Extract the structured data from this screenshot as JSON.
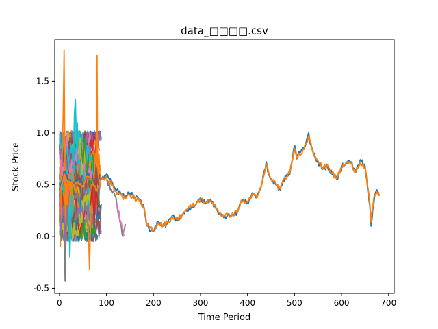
{
  "chart_data": {
    "type": "line",
    "title": "data_□□□□.csv",
    "xlabel": "Time Period",
    "ylabel": "Stock Price",
    "xlim": [
      -10,
      712
    ],
    "ylim": [
      -0.55,
      1.9
    ],
    "xticks": [
      0,
      100,
      200,
      300,
      400,
      500,
      600,
      700
    ],
    "yticks": [
      -0.5,
      0.0,
      0.5,
      1.0,
      1.5
    ],
    "grid": false,
    "legend": "none",
    "colors": [
      "#1f77b4",
      "#ff7f0e",
      "#2ca02c",
      "#d62728",
      "#9467bd",
      "#8c564b",
      "#e377c2",
      "#7f7f7f",
      "#bcbd22",
      "#17becf"
    ],
    "long_series": [
      {
        "color": "#1f77b4",
        "x": [
          0,
          10,
          20,
          30,
          40,
          50,
          60,
          70,
          80,
          90,
          100,
          110,
          120,
          130,
          140,
          150,
          160,
          170,
          180,
          185,
          190,
          200,
          210,
          220,
          230,
          240,
          250,
          260,
          270,
          280,
          290,
          300,
          310,
          320,
          330,
          340,
          350,
          360,
          370,
          380,
          385,
          390,
          400,
          410,
          420,
          430,
          440,
          445,
          450,
          460,
          470,
          480,
          490,
          500,
          505,
          510,
          520,
          530,
          535,
          540,
          550,
          560,
          570,
          580,
          590,
          600,
          610,
          620,
          630,
          640,
          650,
          660,
          663,
          670,
          675,
          680
        ],
        "y": [
          0.45,
          0.62,
          0.55,
          0.52,
          0.55,
          0.5,
          0.6,
          0.55,
          0.45,
          0.56,
          0.6,
          0.52,
          0.45,
          0.42,
          0.38,
          0.42,
          0.38,
          0.35,
          0.28,
          0.12,
          0.08,
          0.05,
          0.14,
          0.1,
          0.12,
          0.2,
          0.15,
          0.2,
          0.25,
          0.28,
          0.3,
          0.37,
          0.32,
          0.35,
          0.3,
          0.22,
          0.18,
          0.22,
          0.2,
          0.25,
          0.33,
          0.35,
          0.32,
          0.42,
          0.38,
          0.5,
          0.72,
          0.6,
          0.55,
          0.5,
          0.45,
          0.58,
          0.6,
          0.88,
          0.75,
          0.82,
          0.85,
          1.0,
          0.88,
          0.8,
          0.72,
          0.65,
          0.68,
          0.6,
          0.55,
          0.68,
          0.72,
          0.72,
          0.62,
          0.74,
          0.68,
          0.3,
          0.1,
          0.38,
          0.45,
          0.4
        ]
      },
      {
        "color": "#ff7f0e",
        "x": [
          0,
          10,
          20,
          30,
          40,
          50,
          60,
          70,
          80,
          90,
          100,
          110,
          120,
          130,
          140,
          150,
          160,
          170,
          180,
          185,
          190,
          200,
          210,
          220,
          230,
          240,
          250,
          260,
          270,
          280,
          290,
          300,
          310,
          320,
          330,
          340,
          350,
          360,
          370,
          380,
          385,
          390,
          400,
          410,
          420,
          430,
          440,
          445,
          450,
          460,
          470,
          480,
          490,
          500,
          505,
          510,
          520,
          530,
          535,
          540,
          550,
          560,
          570,
          580,
          590,
          600,
          610,
          620,
          630,
          640,
          650,
          660,
          663,
          670,
          675,
          680
        ],
        "y": [
          0.42,
          0.6,
          0.52,
          0.5,
          0.53,
          0.48,
          0.58,
          0.53,
          0.44,
          0.55,
          0.58,
          0.5,
          0.44,
          0.4,
          0.37,
          0.4,
          0.37,
          0.34,
          0.27,
          0.13,
          0.1,
          0.06,
          0.13,
          0.11,
          0.13,
          0.19,
          0.16,
          0.21,
          0.26,
          0.29,
          0.31,
          0.36,
          0.33,
          0.34,
          0.31,
          0.23,
          0.19,
          0.21,
          0.21,
          0.26,
          0.32,
          0.34,
          0.33,
          0.41,
          0.37,
          0.49,
          0.7,
          0.61,
          0.56,
          0.51,
          0.46,
          0.57,
          0.61,
          0.85,
          0.76,
          0.8,
          0.84,
          0.97,
          0.9,
          0.81,
          0.73,
          0.66,
          0.69,
          0.61,
          0.56,
          0.67,
          0.71,
          0.7,
          0.63,
          0.72,
          0.67,
          0.32,
          0.14,
          0.4,
          0.43,
          0.39
        ]
      },
      {
        "color": "#7f7f7f",
        "x": [
          100,
          110,
          120,
          125,
          130,
          135,
          140
        ],
        "y": [
          0.55,
          0.45,
          0.38,
          0.22,
          0.12,
          0.0,
          0.12
        ]
      },
      {
        "color": "#e377c2",
        "x": [
          120,
          125,
          130,
          135,
          138
        ],
        "y": [
          0.32,
          0.25,
          0.15,
          0.05,
          0.0
        ]
      }
    ],
    "short_cluster": {
      "x_range": [
        0,
        90
      ],
      "spikes": [
        {
          "color": "#ff7f0e",
          "x": [
            0,
            2,
            4,
            6,
            8,
            9,
            10,
            11,
            12,
            13,
            14,
            15,
            16,
            17,
            18,
            20,
            22,
            24,
            26,
            28,
            30
          ],
          "y": [
            0.4,
            -0.1,
            0.6,
            0.8,
            1.2,
            1.5,
            1.8,
            1.1,
            0.4,
            -0.3,
            0.1,
            0.2,
            0.5,
            0.3,
            0.6,
            0.2,
            0.4,
            0.3,
            0.5,
            0.2,
            0.4
          ]
        },
        {
          "color": "#ff7f0e",
          "x": [
            60,
            62,
            64,
            66,
            68,
            70,
            72,
            74,
            76,
            78,
            80,
            81,
            82,
            84,
            86,
            88
          ],
          "y": [
            0.2,
            0.0,
            -0.32,
            0.1,
            0.5,
            0.3,
            0.6,
            0.4,
            0.8,
            0.5,
            1.75,
            0.9,
            0.5,
            0.8,
            0.6,
            0.5
          ]
        },
        {
          "color": "#7f7f7f",
          "x": [
            10,
            12,
            14,
            16,
            18,
            20
          ],
          "y": [
            0.2,
            -0.43,
            0.0,
            0.3,
            0.1,
            0.4
          ]
        },
        {
          "color": "#17becf",
          "x": [
            30,
            32,
            34,
            36,
            38,
            40
          ],
          "y": [
            0.8,
            1.2,
            1.32,
            0.9,
            1.1,
            0.7
          ]
        },
        {
          "color": "#9467bd",
          "x": [
            0,
            3,
            6,
            9,
            12,
            15
          ],
          "y": [
            0.45,
            0.0,
            0.2,
            0.3,
            -0.05,
            0.25
          ]
        },
        {
          "color": "#17becf",
          "x": [
            20,
            22,
            24,
            26,
            28
          ],
          "y": [
            0.3,
            -0.2,
            0.1,
            0.4,
            0.2
          ]
        },
        {
          "color": "#d62728",
          "x": [
            66,
            70,
            74,
            78,
            82
          ],
          "y": [
            0.3,
            0.5,
            0.1,
            0.6,
            0.2
          ]
        },
        {
          "color": "#bcbd22",
          "x": [
            40,
            44,
            48,
            52,
            56
          ],
          "y": [
            0.8,
            0.95,
            0.6,
            0.85,
            0.7
          ]
        },
        {
          "color": "#2ca02c",
          "x": [
            46,
            50,
            54,
            58,
            62
          ],
          "y": [
            0.9,
            0.7,
            0.95,
            0.6,
            0.8
          ]
        },
        {
          "color": "#8c564b",
          "x": [
            70,
            74,
            78,
            82,
            86
          ],
          "y": [
            0.6,
            0.4,
            0.7,
            0.5,
            0.6
          ]
        }
      ]
    }
  }
}
